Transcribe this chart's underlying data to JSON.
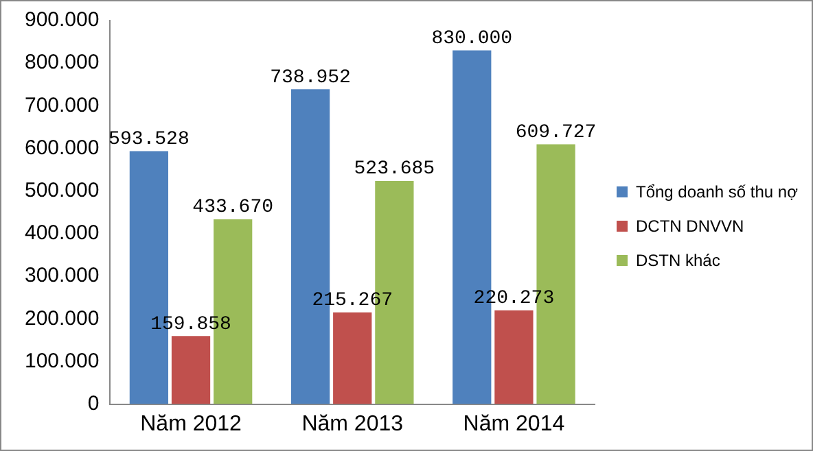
{
  "chart_data": {
    "type": "bar",
    "categories": [
      "Năm 2012",
      "Năm 2013",
      "Năm 2014"
    ],
    "series": [
      {
        "name": "Tổng doanh số thu nợ",
        "color": "#4f81bd",
        "values": [
          593528,
          738952,
          830000
        ],
        "value_labels": [
          "593.528",
          "738.952",
          "830.000"
        ]
      },
      {
        "name": "DCTN DNVVN",
        "color": "#c0504d",
        "values": [
          159858,
          215267,
          220273
        ],
        "value_labels": [
          "159.858",
          "215.267",
          "220.273"
        ]
      },
      {
        "name": "DSTN khác",
        "color": "#9bbb59",
        "values": [
          433670,
          523685,
          609727
        ],
        "value_labels": [
          "433.670",
          "523.685",
          "609.727"
        ]
      }
    ],
    "ylim": [
      0,
      900000
    ],
    "yticks": [
      {
        "value": 0,
        "label": "0"
      },
      {
        "value": 100000,
        "label": "100.000"
      },
      {
        "value": 200000,
        "label": "200.000"
      },
      {
        "value": 300000,
        "label": "300.000"
      },
      {
        "value": 400000,
        "label": "400.000"
      },
      {
        "value": 500000,
        "label": "500.000"
      },
      {
        "value": 600000,
        "label": "600.000"
      },
      {
        "value": 700000,
        "label": "700.000"
      },
      {
        "value": 800000,
        "label": "800.000"
      },
      {
        "value": 900000,
        "label": "900.000"
      }
    ],
    "grid": false,
    "legend": "right"
  }
}
